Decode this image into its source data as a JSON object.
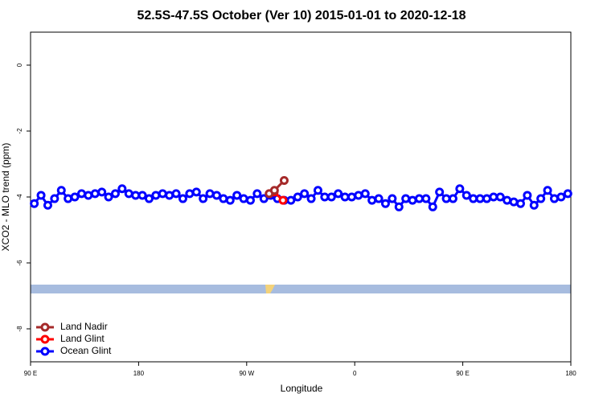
{
  "chart_data": {
    "type": "line",
    "title": "52.5S-47.5S October (Ver 10)   2015-01-01 to 2020-12-18",
    "x_label": "Longitude",
    "y_label": "XCO2 - MLO trend (ppm)",
    "xlim": [
      0,
      360
    ],
    "xticks": [
      {
        "value": 0,
        "label": "90 E"
      },
      {
        "value": 72,
        "label": "180"
      },
      {
        "value": 144,
        "label": "90 W"
      },
      {
        "value": 216,
        "label": "0"
      },
      {
        "value": 288,
        "label": "90 E"
      },
      {
        "value": 360,
        "label": "180"
      }
    ],
    "ylim": [
      -9,
      1
    ],
    "yticks": [
      0,
      -2,
      -4,
      -6,
      -8
    ],
    "legend": "bottomleft",
    "series": [
      {
        "name": "Land Nadir",
        "color": "#a52a2a",
        "x": [
          159,
          162.5,
          169
        ],
        "values": [
          -3.9,
          -3.8,
          -3.5
        ]
      },
      {
        "name": "Land Glint",
        "color": "#ff0000",
        "x": [
          159.1,
          162.3,
          168.2
        ],
        "values": [
          -3.9,
          -3.85,
          -4.1
        ]
      },
      {
        "name": "Ocean Glint",
        "color": "#0000ff",
        "x": [
          2.5,
          7,
          11.5,
          16,
          20.5,
          25,
          29.5,
          34,
          38.5,
          43,
          47.5,
          52,
          56.5,
          61,
          65.5,
          70,
          74.5,
          79,
          83.5,
          88,
          92.5,
          97,
          101.5,
          106,
          110.5,
          115,
          119.5,
          124,
          128.5,
          133,
          137.5,
          142,
          146.5,
          151,
          155.5,
          160,
          164.5,
          169,
          173.5,
          178,
          182.5,
          187,
          191.5,
          196,
          200.5,
          205,
          209.5,
          214,
          218.5,
          223,
          227.5,
          232,
          236.5,
          241,
          245.5,
          250,
          254.5,
          259,
          263.5,
          268,
          272.5,
          277,
          281.5,
          286,
          290.5,
          295,
          299.5,
          304,
          308.5,
          313,
          317.5,
          322,
          326.5,
          331,
          335.5,
          340,
          344.5,
          349,
          353.5,
          358
        ],
        "values": [
          -4.2,
          -3.95,
          -4.25,
          -4.05,
          -3.8,
          -4.05,
          -4.0,
          -3.9,
          -3.95,
          -3.9,
          -3.85,
          -4.0,
          -3.9,
          -3.75,
          -3.9,
          -3.95,
          -3.95,
          -4.05,
          -3.95,
          -3.9,
          -3.95,
          -3.9,
          -4.05,
          -3.9,
          -3.85,
          -4.05,
          -3.9,
          -3.95,
          -4.05,
          -4.1,
          -3.95,
          -4.05,
          -4.1,
          -3.9,
          -4.05,
          -3.95,
          -4.05,
          -4.1,
          -4.1,
          -4.0,
          -3.9,
          -4.05,
          -3.8,
          -4.0,
          -4.0,
          -3.9,
          -4.0,
          -4.0,
          -3.95,
          -3.9,
          -4.1,
          -4.05,
          -4.2,
          -4.05,
          -4.3,
          -4.05,
          -4.1,
          -4.05,
          -4.05,
          -4.3,
          -3.85,
          -4.05,
          -4.05,
          -3.75,
          -3.95,
          -4.05,
          -4.05,
          -4.05,
          -4.0,
          -4.0,
          -4.1,
          -4.15,
          -4.2,
          -3.95,
          -4.25,
          -4.05,
          -3.8,
          -4.05,
          -4.0,
          -3.9
        ]
      }
    ]
  }
}
